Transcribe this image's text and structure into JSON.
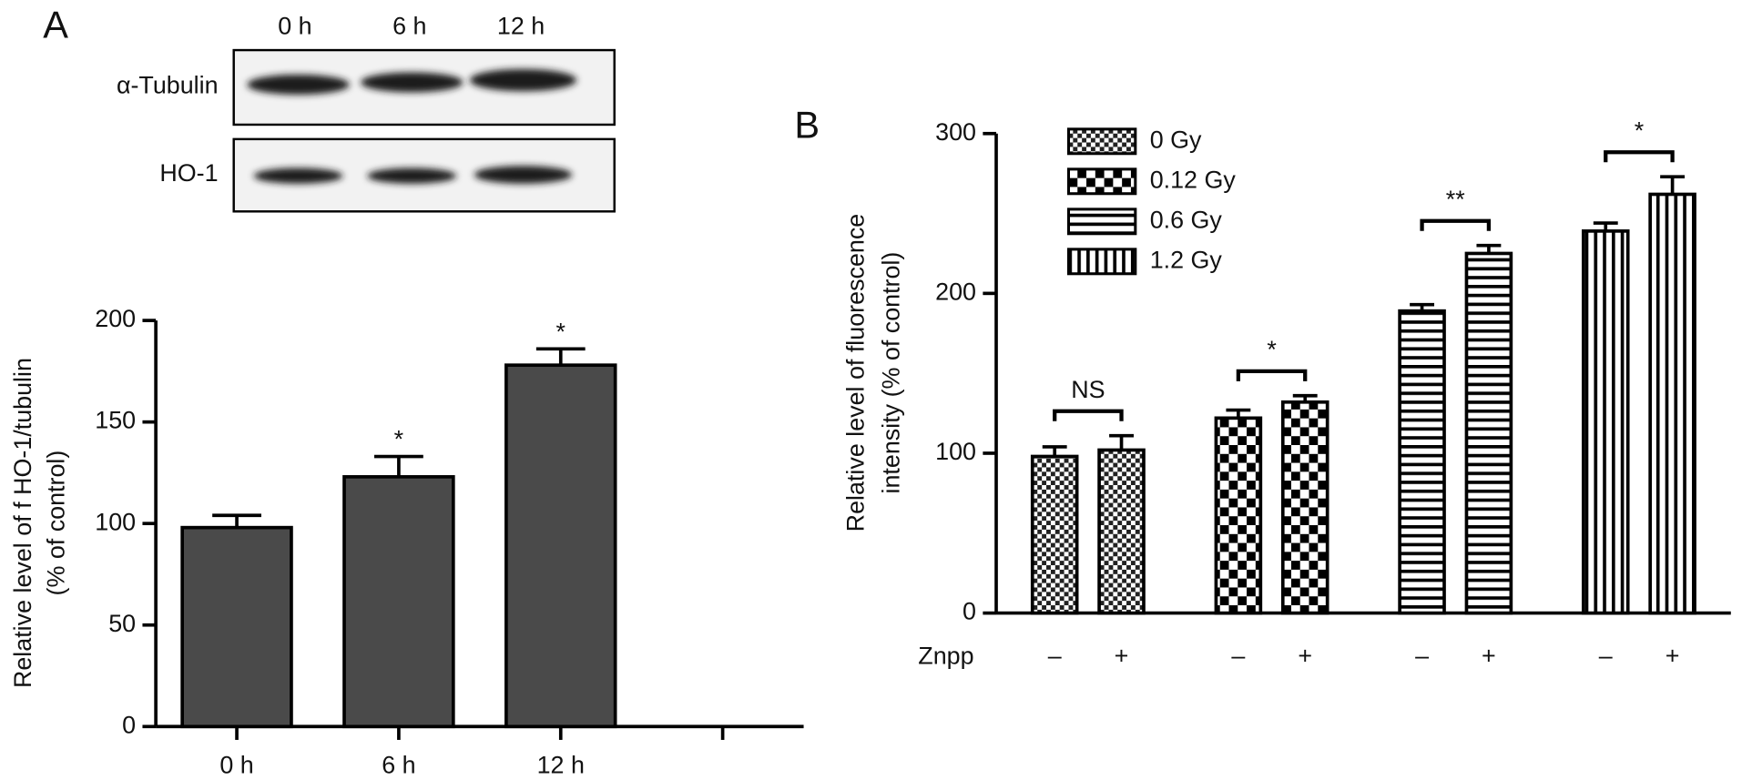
{
  "chart_data": [
    {
      "type": "bar",
      "panel": "A",
      "ylabel": [
        "Relative level of f HO-1/tubulin",
        "(% of control)"
      ],
      "categories": [
        "0 h",
        "6 h",
        "12 h",
        null
      ],
      "values": [
        98,
        123,
        178,
        null
      ],
      "errors": [
        6,
        10,
        8,
        null
      ],
      "annotations": [
        null,
        "*",
        "*",
        null
      ],
      "color": "#4a4a4a",
      "ylim": [
        0,
        200
      ],
      "yticks": [
        0,
        50,
        100,
        150,
        200
      ]
    },
    {
      "type": "bar",
      "panel": "B",
      "ylabel": [
        "Relative level of fluorescence",
        "intensity (% of control)"
      ],
      "x_row_label": "Znpp",
      "group_labels": [
        "–",
        "+"
      ],
      "series": [
        {
          "name": "0 Gy",
          "pattern": "fine-check",
          "values": [
            98,
            102
          ],
          "errors": [
            6,
            9
          ],
          "significance": "NS"
        },
        {
          "name": "0.12 Gy",
          "pattern": "check",
          "values": [
            122,
            132
          ],
          "errors": [
            5,
            4
          ],
          "significance": "*"
        },
        {
          "name": "0.6 Gy",
          "pattern": "horizontal",
          "values": [
            189,
            225
          ],
          "errors": [
            4,
            5
          ],
          "significance": "**"
        },
        {
          "name": "1.2 Gy",
          "pattern": "vertical",
          "values": [
            239,
            262
          ],
          "errors": [
            5,
            11
          ],
          "significance": "*"
        }
      ],
      "ylim": [
        0,
        300
      ],
      "yticks": [
        0,
        100,
        200,
        300
      ]
    }
  ],
  "blot": {
    "lanes": [
      "0 h",
      "6 h",
      "12 h"
    ],
    "rows": [
      "α-Tubulin",
      "HO-1"
    ]
  }
}
